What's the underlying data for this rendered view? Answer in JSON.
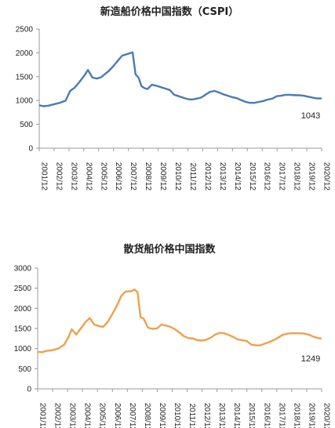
{
  "chart_data": [
    {
      "type": "line",
      "title": "新造船价格中国指数（CSPI）",
      "color": "#4a7bb5",
      "ylim": [
        0,
        2500
      ],
      "yticks": [
        "0",
        "500",
        "1000",
        "1500",
        "2000",
        "2500"
      ],
      "x_ticks": [
        "2001/12",
        "2002/12",
        "2003/12",
        "2004/12",
        "2005/12",
        "2006/12",
        "2007/12",
        "2008/12",
        "2009/12",
        "2010/12",
        "2011/12",
        "2012/12",
        "2013/12",
        "2014/12",
        "2015/12",
        "2016/12",
        "2017/12",
        "2018/12",
        "2019/12",
        "2020/12"
      ],
      "end_label": "1043",
      "series": [
        {
          "x": [
            2001.92,
            2002.2,
            2002.5,
            2002.9,
            2003.3,
            2003.7,
            2004.0,
            2004.3,
            2004.6,
            2004.9,
            2005.2,
            2005.5,
            2005.8,
            2006.1,
            2006.4,
            2006.6,
            2006.9,
            2007.2,
            2007.5,
            2007.8,
            2008.0,
            2008.2,
            2008.4,
            2008.6,
            2008.8,
            2009.0,
            2009.2,
            2009.5,
            2009.8,
            2010.1,
            2010.4,
            2010.7,
            2011.0,
            2011.3,
            2011.6,
            2011.9,
            2012.2,
            2012.5,
            2012.8,
            2013.1,
            2013.4,
            2013.7,
            2014.0,
            2014.3,
            2014.6,
            2014.9,
            2015.2,
            2015.5,
            2015.8,
            2016.1,
            2016.4,
            2016.7,
            2017.0,
            2017.3,
            2017.6,
            2017.9,
            2018.2,
            2018.5,
            2018.8,
            2019.1,
            2019.4,
            2019.7,
            2020.0,
            2020.3,
            2020.6,
            2020.92
          ],
          "y": [
            900,
            880,
            890,
            920,
            950,
            1000,
            1200,
            1270,
            1380,
            1500,
            1640,
            1480,
            1460,
            1490,
            1570,
            1620,
            1720,
            1830,
            1940,
            1970,
            1990,
            2010,
            1550,
            1480,
            1300,
            1260,
            1240,
            1330,
            1310,
            1280,
            1250,
            1220,
            1120,
            1090,
            1060,
            1030,
            1020,
            1040,
            1060,
            1120,
            1180,
            1200,
            1170,
            1130,
            1100,
            1070,
            1050,
            1010,
            970,
            950,
            950,
            970,
            990,
            1020,
            1040,
            1090,
            1100,
            1120,
            1120,
            1110,
            1110,
            1100,
            1080,
            1060,
            1045,
            1043
          ]
        }
      ]
    },
    {
      "type": "line",
      "title": "散货船价格中国指数",
      "color": "#f0a04b",
      "ylim": [
        0,
        3000
      ],
      "yticks": [
        "0",
        "500",
        "1000",
        "1500",
        "2000",
        "2500",
        "3000"
      ],
      "x_ticks": [
        "2001/12",
        "2002/12",
        "2003/12",
        "2004/12",
        "2005/12",
        "2006/12",
        "2007/12",
        "2008/12",
        "2009/12",
        "2010/12",
        "2011/12",
        "2012/12",
        "2013/12",
        "2014/12",
        "2015/12",
        "2016/12",
        "2017/12",
        "2018/12",
        "2019/12",
        "2020/12"
      ],
      "end_label": "1249",
      "series": [
        {
          "x": [
            2001.92,
            2002.2,
            2002.5,
            2002.9,
            2003.3,
            2003.7,
            2004.0,
            2004.2,
            2004.5,
            2004.8,
            2005.1,
            2005.4,
            2005.7,
            2006.0,
            2006.3,
            2006.6,
            2006.9,
            2007.2,
            2007.5,
            2007.8,
            2008.0,
            2008.2,
            2008.4,
            2008.6,
            2008.8,
            2009.0,
            2009.3,
            2009.6,
            2009.9,
            2010.2,
            2010.5,
            2010.8,
            2011.1,
            2011.4,
            2011.7,
            2012.0,
            2012.3,
            2012.6,
            2012.9,
            2013.2,
            2013.5,
            2013.8,
            2014.1,
            2014.4,
            2014.7,
            2015.0,
            2015.3,
            2015.6,
            2015.9,
            2016.2,
            2016.5,
            2016.8,
            2017.1,
            2017.4,
            2017.7,
            2018.0,
            2018.3,
            2018.6,
            2018.9,
            2019.2,
            2019.5,
            2019.8,
            2020.1,
            2020.4,
            2020.7,
            2020.92
          ],
          "y": [
            920,
            910,
            940,
            960,
            1000,
            1100,
            1300,
            1480,
            1350,
            1500,
            1650,
            1760,
            1600,
            1560,
            1540,
            1660,
            1850,
            2050,
            2300,
            2420,
            2420,
            2430,
            2470,
            2400,
            1780,
            1750,
            1520,
            1490,
            1500,
            1600,
            1570,
            1540,
            1480,
            1400,
            1310,
            1260,
            1250,
            1210,
            1200,
            1220,
            1270,
            1350,
            1390,
            1380,
            1340,
            1290,
            1230,
            1210,
            1190,
            1100,
            1080,
            1080,
            1120,
            1160,
            1210,
            1270,
            1340,
            1370,
            1380,
            1380,
            1380,
            1370,
            1340,
            1290,
            1260,
            1249
          ]
        }
      ]
    }
  ]
}
